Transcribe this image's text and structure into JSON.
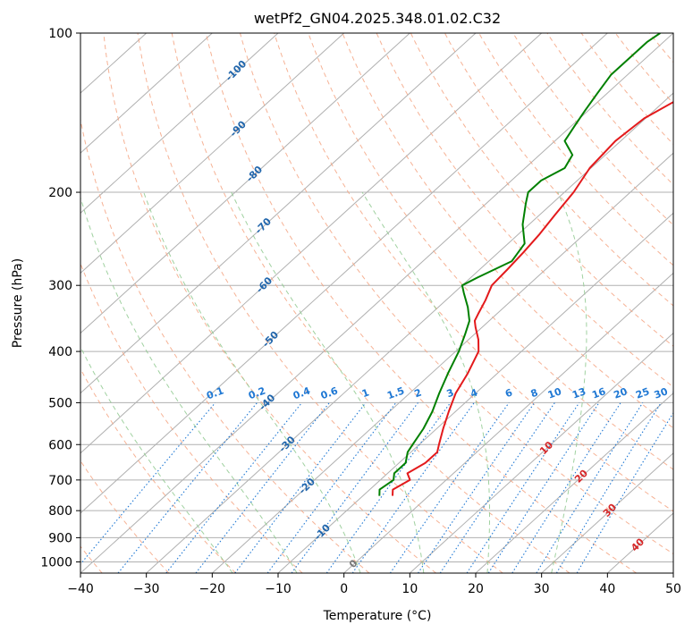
{
  "chart_data": {
    "type": "line",
    "title": "wetPf2_GN04.2025.348.01.02.C32",
    "xlabel": "Temperature (°C)",
    "ylabel": "Pressure (hPa)",
    "xlim": [
      -40,
      50
    ],
    "ylim": [
      1050,
      100
    ],
    "x_ticks": [
      -40,
      -30,
      -20,
      -10,
      0,
      10,
      20,
      30,
      40,
      50
    ],
    "y_ticks": [
      1000,
      900,
      800,
      700,
      600,
      500,
      400,
      300,
      200,
      100
    ],
    "colors": {
      "temperature": "#e31a1c",
      "dewpoint": "#008000",
      "dry_adiabat": "#f4a582",
      "moist_adiabat": "#8fc98f",
      "mixing_ratio": "#1f78d4",
      "isotherm_label_blue": "#2166ac",
      "isotherm_label_red": "#d62728",
      "grid": "#b0b0b0"
    },
    "series": [
      {
        "name": "Temperature",
        "p": [
          750,
          730,
          700,
          680,
          650,
          620,
          600,
          560,
          520,
          480,
          440,
          400,
          380,
          360,
          350,
          340,
          320,
          300,
          280,
          260,
          240,
          220,
          200,
          180,
          160,
          145,
          135,
          125,
          118,
          110,
          104,
          100
        ],
        "t": [
          -5.5,
          -6.5,
          -5.5,
          -7,
          -6,
          -6,
          -7,
          -9,
          -11,
          -13,
          -14.5,
          -16.5,
          -18.5,
          -21,
          -22.2,
          -22.8,
          -24,
          -25.5,
          -25.8,
          -26.2,
          -26.8,
          -27.7,
          -28.6,
          -30.2,
          -30.8,
          -30.2,
          -28.5,
          -24,
          -18,
          -12,
          -8,
          -5.7
        ]
      },
      {
        "name": "Dewpoint",
        "p": [
          750,
          730,
          700,
          680,
          650,
          620,
          600,
          560,
          520,
          480,
          440,
          400,
          370,
          350,
          330,
          310,
          300,
          290,
          270,
          250,
          230,
          210,
          200,
          190,
          180,
          170,
          160,
          150,
          140,
          130,
          120,
          110,
          104,
          100
        ],
        "t": [
          -7.5,
          -8.5,
          -8,
          -9,
          -9,
          -10.5,
          -11,
          -12,
          -13.5,
          -15.5,
          -17.5,
          -19.5,
          -21.5,
          -23,
          -25.5,
          -28.5,
          -30,
          -29,
          -26.5,
          -27.5,
          -31,
          -34,
          -35.5,
          -35.5,
          -34,
          -35,
          -38.5,
          -39.5,
          -40.5,
          -41.5,
          -42.5,
          -42.5,
          -42.5,
          -42
        ]
      }
    ],
    "dry_adiabats_theta_c": [
      -40,
      -30,
      -20,
      -10,
      0,
      10,
      20,
      30,
      40,
      50,
      60,
      70,
      80,
      90,
      100,
      110,
      120,
      130,
      140,
      150,
      160,
      170,
      180,
      190,
      200,
      210,
      220,
      230,
      240,
      250
    ],
    "moist_adiabats_thetaw_c": [
      -20,
      -10,
      0,
      10,
      20,
      30
    ],
    "mixing_ratio_lines_gkg": [
      "0.1",
      "0.2",
      "0.4",
      "0.6",
      "1",
      "1.5",
      "2",
      "3",
      "4",
      "6",
      "8",
      "10",
      "13",
      "16",
      "20",
      "25",
      "30",
      "36"
    ],
    "isotherm_labels": [
      "-100",
      "-90",
      "-80",
      "-70",
      "-60",
      "-50",
      "-40",
      "-30",
      "-20",
      "-10",
      "0",
      "10",
      "20",
      "30",
      "40"
    ]
  }
}
